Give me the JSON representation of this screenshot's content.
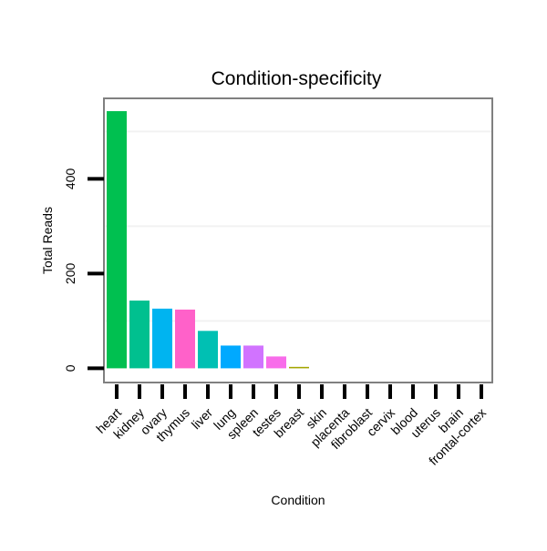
{
  "chart_data": {
    "type": "bar",
    "title": "Condition-specificity",
    "xlabel": "Condition",
    "ylabel": "Total Reads",
    "categories": [
      "heart",
      "kidney",
      "ovary",
      "thymus",
      "liver",
      "lung",
      "spleen",
      "testes",
      "breast",
      "skin",
      "placenta",
      "fibroblast",
      "cervix",
      "blood",
      "uterus",
      "brain",
      "frontal-cortex"
    ],
    "values": [
      543,
      143,
      126,
      124,
      79,
      48,
      48,
      25,
      3,
      0,
      0,
      0,
      0,
      0,
      0,
      0,
      0
    ],
    "colors": [
      "#00c050",
      "#00c08f",
      "#00b4f0",
      "#ff61c9",
      "#00c0b3",
      "#00a9ff",
      "#d173ff",
      "#f86cea",
      "#a3a500",
      "#f8766d",
      "#e58700",
      "#c99800",
      "#6bb100",
      "#00ba38",
      "#00bfc4",
      "#619cff",
      "#fd61d1"
    ],
    "ylim": [
      -30,
      570
    ],
    "yticks": [
      0,
      200,
      400
    ],
    "ytick_labels": [
      "0",
      "200",
      "400"
    ],
    "minor_gridlines": [
      100,
      300,
      500
    ],
    "grid": true,
    "legend": "none"
  }
}
